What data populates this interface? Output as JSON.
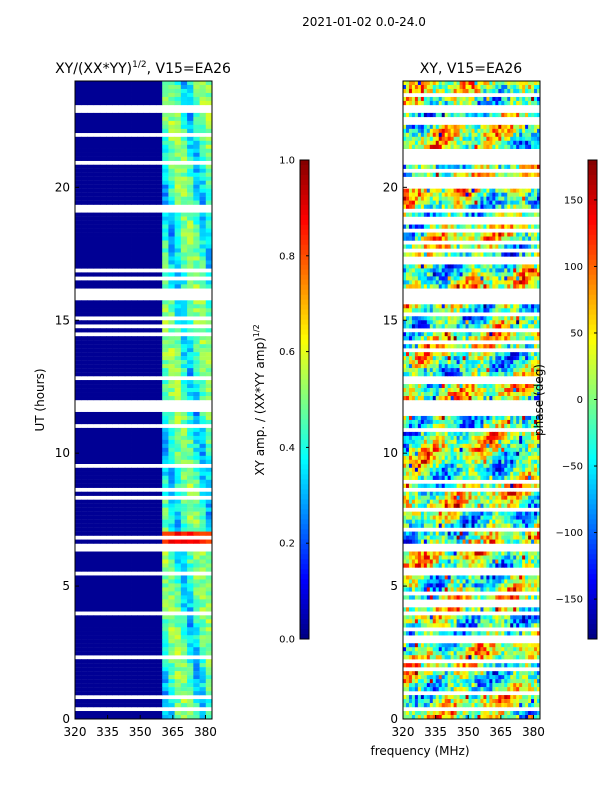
{
  "figure": {
    "suptitle": "2021-01-02 0.0-24.0",
    "shared_xlabel": "frequency (MHz)"
  },
  "colors": {
    "jet": [
      "#000080",
      "#0000ff",
      "#0080ff",
      "#00ffff",
      "#80ff80",
      "#ffff00",
      "#ff8000",
      "#ff0000",
      "#800000"
    ],
    "axis": "#000000",
    "gap": "#ffffff"
  },
  "chart_data": [
    {
      "type": "heatmap",
      "panel": "amplitude",
      "title_main": "XY/(XX*YY)",
      "title_exp": "1/2",
      "title_suffix": ", V15=EA26",
      "xlabel": "",
      "ylabel": "UT (hours)",
      "xlim": [
        320,
        383
      ],
      "ylim": [
        0,
        24
      ],
      "xticks": [
        "320",
        "335",
        "350",
        "365",
        "380"
      ],
      "yticks": [
        "0",
        "5",
        "10",
        "15",
        "20"
      ],
      "colorbar": {
        "label": "XY amp. / (XX*YY amp)",
        "label_exp": "1/2",
        "range": [
          0.0,
          1.0
        ],
        "ticks": [
          "0.0",
          "0.2",
          "0.4",
          "0.6",
          "0.8",
          "1.0"
        ]
      },
      "description_values": {
        "low_band_MHz": [
          320,
          361
        ],
        "low_band_value": 0.02,
        "high_band_MHz": [
          361,
          383
        ],
        "high_band_typical_value": [
          0.2,
          0.5
        ],
        "bright_hours": [
          6.5,
          6.9
        ],
        "bright_value": 0.9
      }
    },
    {
      "type": "heatmap",
      "panel": "phase",
      "title": "XY, V15=EA26",
      "xlabel": "",
      "ylabel": "",
      "xlim": [
        320,
        383
      ],
      "ylim": [
        0,
        24
      ],
      "xticks": [
        "320",
        "335",
        "350",
        "365",
        "380"
      ],
      "yticks": [
        "0",
        "5",
        "10",
        "15",
        "20"
      ],
      "colorbar": {
        "label": "phase (deg)",
        "range": [
          -180,
          180
        ],
        "ticks": [
          "−150",
          "−100",
          "−50",
          "0",
          "50",
          "100",
          "150"
        ]
      },
      "description_values": {
        "phase_range_deg": [
          -180,
          180
        ]
      }
    }
  ]
}
